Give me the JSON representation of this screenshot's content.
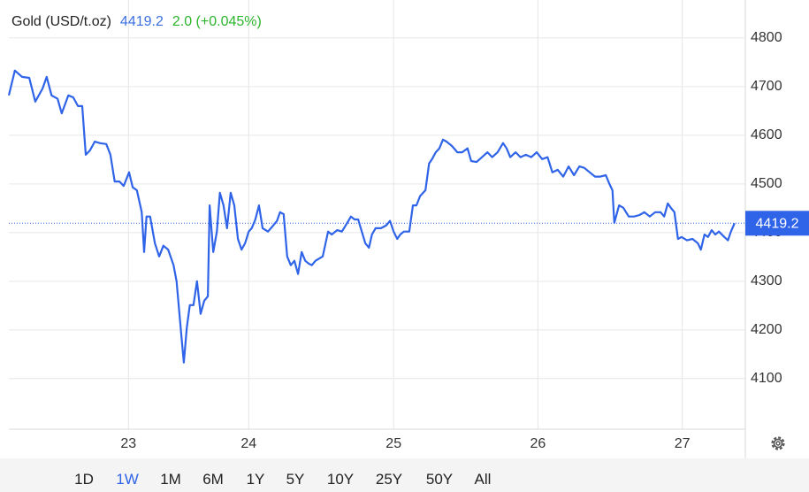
{
  "chart_data": {
    "type": "line",
    "title": "Gold (USD/t.oz)",
    "price": 4419.2,
    "change": "2.0 (+0.045%)",
    "xlim": [
      0,
      122.5
    ],
    "xticks": [
      {
        "value": 19.9,
        "label": "23"
      },
      {
        "value": 39.9,
        "label": "24"
      },
      {
        "value": 64.0,
        "label": "25"
      },
      {
        "value": 88.0,
        "label": "26"
      },
      {
        "value": 112.0,
        "label": "27"
      }
    ],
    "ylim": [
      3996,
      4878
    ],
    "yticks": [
      4100,
      4200,
      4300,
      4400,
      4500,
      4600,
      4700,
      4800
    ],
    "grid": true,
    "series": [
      {
        "name": "Gold",
        "color": "#2f63e8",
        "x": [
          0,
          1.0,
          2.2,
          3.4,
          4.4,
          5.6,
          6.3,
          7.1,
          8.1,
          8.8,
          9.9,
          10.7,
          11.5,
          12.2,
          12.8,
          13.5,
          14.3,
          15.1,
          16.2,
          16.9,
          17.6,
          18.4,
          19.1,
          20.0,
          20.6,
          21.3,
          22.1,
          22.5,
          22.9,
          23.5,
          24.3,
          25.0,
          25.7,
          26.5,
          27.4,
          27.9,
          28.7,
          29.1,
          29.6,
          30.1,
          30.7,
          31.3,
          31.9,
          32.5,
          33.1,
          33.4,
          34.0,
          34.6,
          35.1,
          35.7,
          36.3,
          36.9,
          37.5,
          38.1,
          38.7,
          39.3,
          39.9,
          40.4,
          41.0,
          41.6,
          42.2,
          43.1,
          44.0,
          44.6,
          45.1,
          45.7,
          46.3,
          46.9,
          47.5,
          48.1,
          48.7,
          49.3,
          49.9,
          50.4,
          51.0,
          52.2,
          53.1,
          53.7,
          54.6,
          55.4,
          56.3,
          56.9,
          57.5,
          58.1,
          58.7,
          59.3,
          59.9,
          60.4,
          61.0,
          61.9,
          62.8,
          63.4,
          64.0,
          64.6,
          65.1,
          65.7,
          66.6,
          67.2,
          67.8,
          68.4,
          69.3,
          69.9,
          70.4,
          71.0,
          71.6,
          72.2,
          72.8,
          73.7,
          74.6,
          75.4,
          76.3,
          76.9,
          77.8,
          78.7,
          79.6,
          80.4,
          81.3,
          82.2,
          82.8,
          83.4,
          84.3,
          85.1,
          86.0,
          86.9,
          87.8,
          88.7,
          89.6,
          90.4,
          91.3,
          92.2,
          93.1,
          94.0,
          94.9,
          95.7,
          96.6,
          97.5,
          98.4,
          99.3,
          99.9,
          100.4,
          100.7,
          101.5,
          102.2,
          103.1,
          104.0,
          104.9,
          105.7,
          106.6,
          107.5,
          108.4,
          109.0,
          109.6,
          110.1,
          110.7,
          111.3,
          111.9,
          112.8,
          113.7,
          114.6,
          115.1,
          115.7,
          116.3,
          116.9,
          117.5,
          118.1,
          119.0,
          119.6,
          120.1,
          120.7
        ],
        "values": [
          4682,
          4733,
          4720,
          4718,
          4669,
          4696,
          4720,
          4682,
          4675,
          4645,
          4682,
          4678,
          4660,
          4660,
          4560,
          4569,
          4587,
          4584,
          4582,
          4560,
          4505,
          4505,
          4496,
          4524,
          4493,
          4487,
          4442,
          4360,
          4433,
          4433,
          4378,
          4351,
          4373,
          4365,
          4333,
          4300,
          4187,
          4133,
          4205,
          4251,
          4251,
          4300,
          4233,
          4260,
          4269,
          4456,
          4360,
          4402,
          4482,
          4456,
          4409,
          4482,
          4456,
          4387,
          4365,
          4378,
          4402,
          4409,
          4427,
          4456,
          4409,
          4402,
          4415,
          4424,
          4442,
          4438,
          4351,
          4333,
          4342,
          4315,
          4360,
          4342,
          4336,
          4333,
          4342,
          4351,
          4402,
          4396,
          4405,
          4402,
          4420,
          4433,
          4427,
          4427,
          4402,
          4378,
          4369,
          4396,
          4409,
          4409,
          4415,
          4424,
          4402,
          4387,
          4396,
          4402,
          4402,
          4456,
          4456,
          4475,
          4487,
          4542,
          4551,
          4565,
          4573,
          4591,
          4587,
          4578,
          4565,
          4565,
          4573,
          4547,
          4545,
          4555,
          4565,
          4555,
          4565,
          4584,
          4573,
          4555,
          4565,
          4555,
          4560,
          4555,
          4565,
          4551,
          4555,
          4524,
          4529,
          4515,
          4536,
          4518,
          4536,
          4533,
          4524,
          4515,
          4515,
          4518,
          4500,
          4487,
          4420,
          4456,
          4451,
          4433,
          4433,
          4436,
          4442,
          4433,
          4442,
          4442,
          4433,
          4460,
          4451,
          4442,
          4387,
          4391,
          4384,
          4387,
          4378,
          4365,
          4396,
          4391,
          4405,
          4396,
          4402,
          4391,
          4384,
          4402,
          4419.2
        ]
      }
    ]
  },
  "range_selector": {
    "options": [
      "1D",
      "1W",
      "1M",
      "6M",
      "1Y",
      "5Y",
      "10Y",
      "25Y",
      "50Y",
      "All"
    ],
    "selected": 1
  }
}
